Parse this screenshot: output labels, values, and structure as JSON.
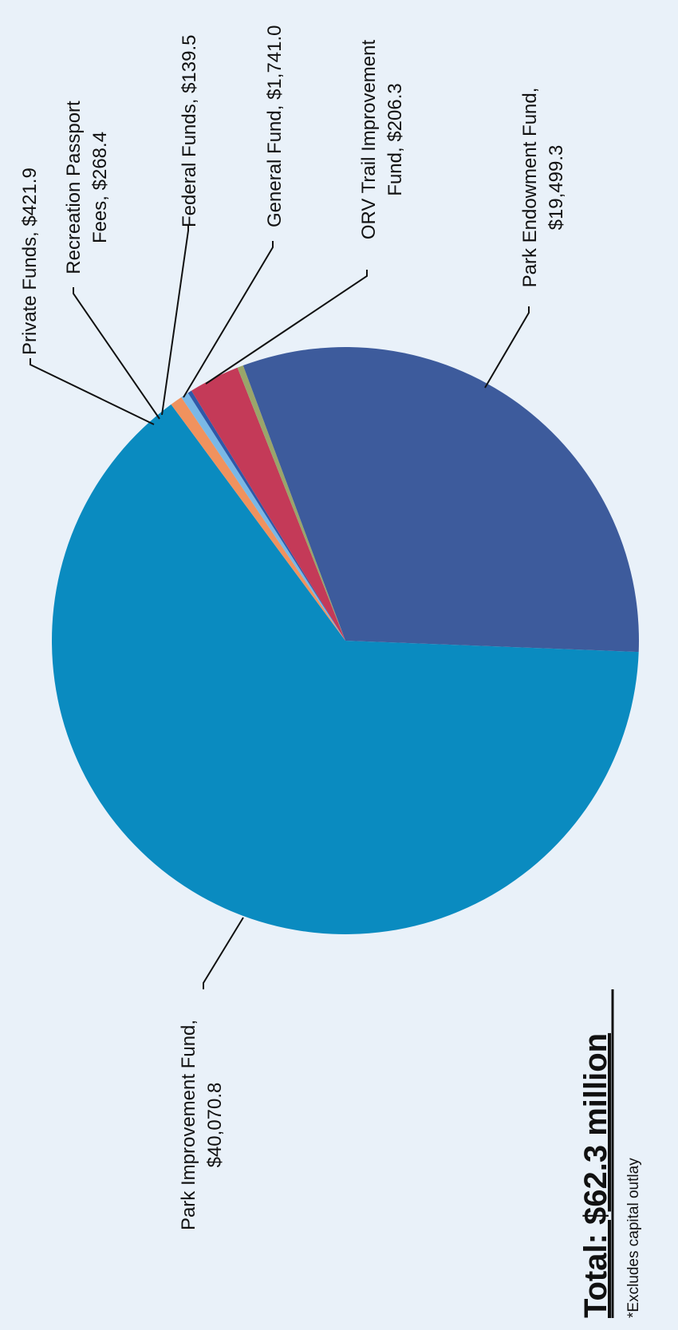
{
  "chart_data": {
    "type": "pie",
    "slices": [
      {
        "label": "Park Endowment Fund,",
        "value_text": "$19,499.3",
        "value": 19499.3,
        "color": "#3d5b9c"
      },
      {
        "label": "Park Improvement Fund,",
        "value_text": "$40,070.8",
        "value": 40070.8,
        "color": "#0a8bc0"
      },
      {
        "label": "Private Funds, $421.9",
        "value_text": "",
        "value": 421.9,
        "color": "#f0925e"
      },
      {
        "label": "Recreation Passport",
        "value_text": "Fees, $268.4",
        "value": 268.4,
        "color": "#7ab8e6"
      },
      {
        "label": "Federal Funds, $139.5",
        "value_text": "",
        "value": 139.5,
        "color": "#2f58a8"
      },
      {
        "label": "General Fund, $1,741.0",
        "value_text": "",
        "value": 1741.0,
        "color": "#c43a58"
      },
      {
        "label": "ORV Trail Improvement",
        "value_text": "Fund, $206.3",
        "value": 206.3,
        "color": "#9aa56a"
      }
    ]
  },
  "summary": {
    "total": "Total: $62.3 million",
    "note": "*Excludes capital outlay"
  }
}
